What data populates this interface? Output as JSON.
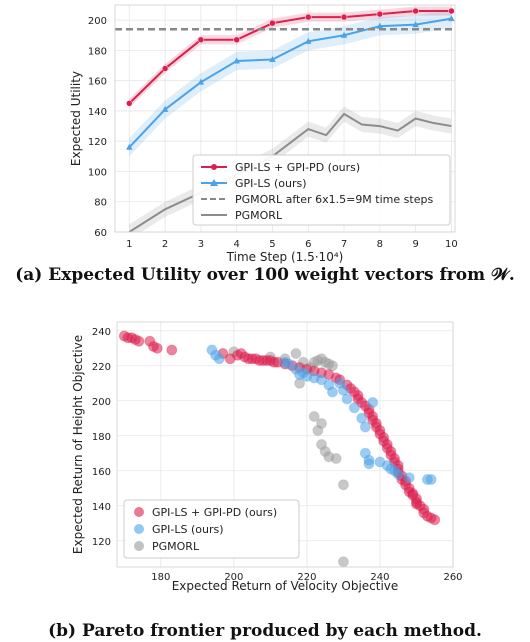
{
  "chart_data": [
    {
      "type": "line",
      "caption": "(a) Expected Utility over 100 weight vectors from 𝒲.",
      "xlabel": "Time Step (1.5·10⁴)",
      "ylabel": "Expected Utility",
      "xlim": [
        0.6,
        10.1
      ],
      "ylim": [
        60,
        210
      ],
      "xticks": [
        1,
        2,
        3,
        4,
        5,
        6,
        7,
        8,
        9,
        10
      ],
      "yticks": [
        60,
        80,
        100,
        120,
        140,
        160,
        180,
        200
      ],
      "grid": true,
      "legend_position": "lower-right",
      "series": [
        {
          "name": "GPI-LS + GPI-PD (ours)",
          "color": "#dc1f4f",
          "marker": "circle",
          "x": [
            1,
            2,
            3,
            4,
            5,
            6,
            7,
            8,
            9,
            10
          ],
          "y": [
            145,
            168,
            187,
            187,
            198,
            202,
            202,
            204,
            206,
            206
          ],
          "band": 3
        },
        {
          "name": "GPI-LS (ours)",
          "color": "#4aa3e8",
          "marker": "triangle",
          "x": [
            1,
            2,
            3,
            4,
            5,
            6,
            7,
            8,
            9,
            10
          ],
          "y": [
            116,
            141,
            159,
            173,
            174,
            186,
            190,
            196,
            197,
            201
          ],
          "band": 6
        },
        {
          "name": "PGMORL after 6x1.5=9M time steps",
          "color": "#888888",
          "style": "dashed",
          "x": [
            0.6,
            10.1
          ],
          "y": [
            194,
            194
          ]
        },
        {
          "name": "PGMORL",
          "color": "#8c8c8c",
          "x": [
            1,
            2,
            3,
            4,
            5,
            5.5,
            6,
            6.5,
            7,
            7.5,
            8,
            8.5,
            9,
            9.5,
            10
          ],
          "y": [
            60,
            75,
            86,
            98,
            110,
            119,
            128,
            124,
            138,
            131,
            130,
            127,
            135,
            132,
            130
          ],
          "band": 5
        }
      ]
    },
    {
      "type": "scatter",
      "caption": "(b) Pareto frontier produced by each method.",
      "xlabel": "Expected Return of Velocity Objective",
      "ylabel": "Expected Return of Height Objective",
      "xlim": [
        168,
        260
      ],
      "ylim": [
        105,
        245
      ],
      "xticks": [
        180,
        200,
        220,
        240,
        260
      ],
      "yticks": [
        120,
        140,
        160,
        180,
        200,
        220,
        240
      ],
      "grid": true,
      "legend_position": "lower-left",
      "series": [
        {
          "name": "GPI-LS + GPI-PD (ours)",
          "color": "#dc1f4f",
          "points": [
            [
              170,
              237
            ],
            [
              171,
              236
            ],
            [
              172,
              236
            ],
            [
              173,
              235
            ],
            [
              174,
              234
            ],
            [
              177,
              234
            ],
            [
              178,
              231
            ],
            [
              179,
              230
            ],
            [
              183,
              229
            ],
            [
              197,
              227
            ],
            [
              199,
              224
            ],
            [
              201,
              226
            ],
            [
              202,
              227
            ],
            [
              203,
              225
            ],
            [
              204,
              224
            ],
            [
              205,
              224
            ],
            [
              206,
              224
            ],
            [
              207,
              223
            ],
            [
              208,
              223
            ],
            [
              209,
              223
            ],
            [
              210,
              223
            ],
            [
              211,
              222
            ],
            [
              212,
              222
            ],
            [
              214,
              221
            ],
            [
              216,
              220
            ],
            [
              218,
              219
            ],
            [
              220,
              218
            ],
            [
              222,
              217
            ],
            [
              224,
              216
            ],
            [
              226,
              215
            ],
            [
              228,
              213
            ],
            [
              229,
              212
            ],
            [
              231,
              209
            ],
            [
              232,
              207
            ],
            [
              233,
              205
            ],
            [
              234,
              203
            ],
            [
              234,
              201
            ],
            [
              235,
              199
            ],
            [
              236,
              197
            ],
            [
              237,
              195
            ],
            [
              237,
              193
            ],
            [
              238,
              191
            ],
            [
              238,
              189
            ],
            [
              239,
              187
            ],
            [
              239,
              185
            ],
            [
              240,
              183
            ],
            [
              240,
              181
            ],
            [
              241,
              179
            ],
            [
              241,
              177
            ],
            [
              242,
              175
            ],
            [
              242,
              173
            ],
            [
              243,
              171
            ],
            [
              243,
              169
            ],
            [
              244,
              167
            ],
            [
              244,
              165
            ],
            [
              245,
              163
            ],
            [
              245,
              161
            ],
            [
              245,
              159
            ],
            [
              246,
              157
            ],
            [
              246,
              155
            ],
            [
              247,
              154
            ],
            [
              247,
              152
            ],
            [
              248,
              150
            ],
            [
              248,
              148
            ],
            [
              249,
              147
            ],
            [
              249,
              146
            ],
            [
              250,
              144
            ],
            [
              250,
              142
            ],
            [
              250,
              141
            ],
            [
              251,
              140
            ],
            [
              252,
              138
            ],
            [
              252,
              136
            ],
            [
              253,
              134
            ],
            [
              254,
              133
            ],
            [
              255,
              132
            ]
          ]
        },
        {
          "name": "GPI-LS (ours)",
          "color": "#4aa3e8",
          "points": [
            [
              194,
              229
            ],
            [
              195,
              226
            ],
            [
              196,
              224
            ],
            [
              214,
              222
            ],
            [
              215,
              221
            ],
            [
              217,
              218
            ],
            [
              218,
              215
            ],
            [
              219,
              216
            ],
            [
              220,
              214
            ],
            [
              222,
              213
            ],
            [
              224,
              212
            ],
            [
              226,
              209
            ],
            [
              227,
              205
            ],
            [
              229,
              210
            ],
            [
              230,
              206
            ],
            [
              231,
              201
            ],
            [
              233,
              196
            ],
            [
              235,
              190
            ],
            [
              236,
              185
            ],
            [
              236,
              170
            ],
            [
              237,
              166
            ],
            [
              237,
              164
            ],
            [
              240,
              165
            ],
            [
              242,
              163
            ],
            [
              243,
              161
            ],
            [
              244,
              160
            ],
            [
              245,
              158
            ],
            [
              248,
              156
            ],
            [
              253,
              155
            ],
            [
              254,
              155
            ],
            [
              238,
              199
            ]
          ]
        },
        {
          "name": "PGMORL",
          "color": "#9a9a9a",
          "points": [
            [
              200,
              228
            ],
            [
              210,
              225
            ],
            [
              214,
              224
            ],
            [
              217,
              227
            ],
            [
              219,
              222
            ],
            [
              221,
              219
            ],
            [
              222,
              222
            ],
            [
              223,
              223
            ],
            [
              224,
              224
            ],
            [
              225,
              222
            ],
            [
              226,
              221
            ],
            [
              227,
              220
            ],
            [
              218,
              210
            ],
            [
              222,
              191
            ],
            [
              224,
              187
            ],
            [
              223,
              183
            ],
            [
              224,
              175
            ],
            [
              225,
              171
            ],
            [
              226,
              168
            ],
            [
              228,
              167
            ],
            [
              230,
              152
            ],
            [
              230,
              108
            ]
          ]
        }
      ]
    }
  ]
}
